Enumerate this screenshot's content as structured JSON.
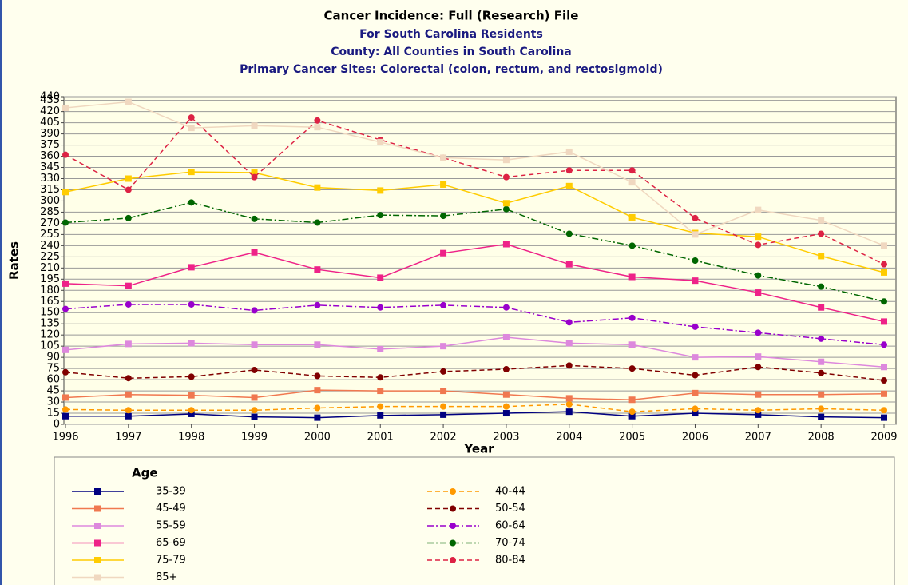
{
  "chart_data": {
    "type": "line",
    "title": "Cancer Incidence: Full (Research) File",
    "subtitles": [
      "For South Carolina Residents",
      "County: All Counties in South Carolina",
      "Primary Cancer Sites: Colorectal (colon, rectum, and rectosigmoid)"
    ],
    "y_label": "Rates",
    "x_label": "Year",
    "legend_title": "Age",
    "categories": [
      "1996",
      "1997",
      "1998",
      "1999",
      "2000",
      "2001",
      "2002",
      "2003",
      "2004",
      "2005",
      "2006",
      "2007",
      "2008",
      "2009"
    ],
    "ylim": [
      0,
      440
    ],
    "yticks": [
      0,
      15,
      30,
      45,
      60,
      75,
      90,
      105,
      120,
      135,
      150,
      165,
      180,
      195,
      210,
      225,
      240,
      255,
      270,
      285,
      300,
      315,
      330,
      345,
      360,
      375,
      390,
      405,
      420,
      435,
      440
    ],
    "grid": true,
    "series": [
      {
        "name": "35-39",
        "color": "#000080",
        "marker": "square",
        "dash": "solid",
        "values": [
          11,
          11,
          14,
          10,
          9,
          12,
          13,
          15,
          17,
          11,
          15,
          13,
          10,
          9
        ]
      },
      {
        "name": "40-44",
        "color": "#ff9900",
        "marker": "circle",
        "dash": "dashed",
        "values": [
          20,
          19,
          19,
          19,
          22,
          24,
          24,
          24,
          27,
          17,
          21,
          19,
          21,
          19
        ]
      },
      {
        "name": "45-49",
        "color": "#f07850",
        "marker": "square",
        "dash": "solid",
        "values": [
          36,
          40,
          39,
          36,
          46,
          45,
          45,
          40,
          35,
          33,
          42,
          40,
          40,
          41
        ]
      },
      {
        "name": "50-54",
        "color": "#800000",
        "marker": "circle",
        "dash": "dashed",
        "values": [
          70,
          62,
          64,
          73,
          65,
          63,
          71,
          74,
          79,
          75,
          66,
          77,
          69,
          59
        ]
      },
      {
        "name": "55-59",
        "color": "#dd88dd",
        "marker": "square",
        "dash": "solid",
        "values": [
          100,
          108,
          109,
          107,
          107,
          101,
          105,
          117,
          109,
          107,
          90,
          91,
          84,
          77
        ]
      },
      {
        "name": "60-64",
        "color": "#9900cc",
        "marker": "circle",
        "dash": "dashdot",
        "values": [
          155,
          161,
          161,
          153,
          160,
          157,
          160,
          157,
          137,
          143,
          131,
          123,
          115,
          107
        ]
      },
      {
        "name": "65-69",
        "color": "#ee2288",
        "marker": "square",
        "dash": "solid",
        "values": [
          189,
          186,
          211,
          231,
          208,
          197,
          230,
          242,
          215,
          198,
          193,
          177,
          157,
          138
        ]
      },
      {
        "name": "70-74",
        "color": "#006600",
        "marker": "circle",
        "dash": "dashdot",
        "values": [
          271,
          277,
          298,
          276,
          271,
          281,
          280,
          289,
          256,
          240,
          220,
          200,
          185,
          165
        ]
      },
      {
        "name": "75-79",
        "color": "#ffcc00",
        "marker": "square",
        "dash": "solid",
        "values": [
          312,
          330,
          339,
          338,
          318,
          314,
          322,
          297,
          320,
          278,
          257,
          252,
          226,
          204
        ]
      },
      {
        "name": "80-84",
        "color": "#dd2244",
        "marker": "circle",
        "dash": "dashed",
        "values": [
          362,
          315,
          412,
          332,
          408,
          382,
          358,
          332,
          341,
          341,
          277,
          241,
          256,
          215
        ]
      },
      {
        "name": "85+",
        "color": "#f0d8c0",
        "marker": "square",
        "dash": "solid",
        "values": [
          425,
          433,
          398,
          401,
          399,
          379,
          358,
          355,
          366,
          325,
          255,
          288,
          274,
          240
        ]
      }
    ]
  }
}
